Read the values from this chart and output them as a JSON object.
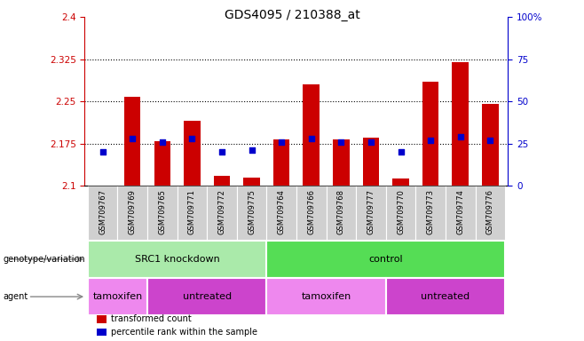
{
  "title": "GDS4095 / 210388_at",
  "samples": [
    "GSM709767",
    "GSM709769",
    "GSM709765",
    "GSM709771",
    "GSM709772",
    "GSM709775",
    "GSM709764",
    "GSM709766",
    "GSM709768",
    "GSM709777",
    "GSM709770",
    "GSM709773",
    "GSM709774",
    "GSM709776"
  ],
  "transformed_count": [
    2.101,
    2.258,
    2.18,
    2.215,
    2.118,
    2.115,
    2.183,
    2.28,
    2.183,
    2.185,
    2.113,
    2.285,
    2.32,
    2.245
  ],
  "percentile_rank": [
    20,
    28,
    26,
    28,
    20,
    21,
    26,
    28,
    26,
    26,
    20,
    27,
    29,
    27
  ],
  "ylim_left": [
    2.1,
    2.4
  ],
  "ylim_right": [
    0,
    100
  ],
  "yticks_left": [
    2.1,
    2.175,
    2.25,
    2.325,
    2.4
  ],
  "ytick_labels_left": [
    "2.1",
    "2.175",
    "2.25",
    "2.325",
    "2.4"
  ],
  "yticks_right": [
    0,
    25,
    50,
    75,
    100
  ],
  "ytick_labels_right": [
    "0",
    "25",
    "50",
    "75",
    "100%"
  ],
  "hlines": [
    2.175,
    2.25,
    2.325
  ],
  "bar_color": "#cc0000",
  "dot_color": "#0000cc",
  "bar_width": 0.55,
  "genotype_variation": {
    "label": "genotype/variation",
    "groups": [
      {
        "name": "SRC1 knockdown",
        "start": 0,
        "end": 6,
        "color": "#aaeaaa"
      },
      {
        "name": "control",
        "start": 6,
        "end": 14,
        "color": "#55dd55"
      }
    ]
  },
  "agent": {
    "label": "agent",
    "groups": [
      {
        "name": "tamoxifen",
        "start": 0,
        "end": 2,
        "color": "#ee88ee"
      },
      {
        "name": "untreated",
        "start": 2,
        "end": 6,
        "color": "#cc44cc"
      },
      {
        "name": "tamoxifen",
        "start": 6,
        "end": 10,
        "color": "#ee88ee"
      },
      {
        "name": "untreated",
        "start": 10,
        "end": 14,
        "color": "#cc44cc"
      }
    ]
  },
  "legend": [
    {
      "label": "transformed count",
      "color": "#cc0000"
    },
    {
      "label": "percentile rank within the sample",
      "color": "#0000cc"
    }
  ],
  "background_color": "#ffffff",
  "plot_bg_color": "#ffffff",
  "tick_color_left": "#cc0000",
  "tick_color_right": "#0000cc",
  "sample_bg_color": "#d0d0d0",
  "title_fontsize": 10,
  "tick_fontsize": 7.5,
  "sample_fontsize": 6,
  "annot_fontsize": 8,
  "legend_fontsize": 7
}
